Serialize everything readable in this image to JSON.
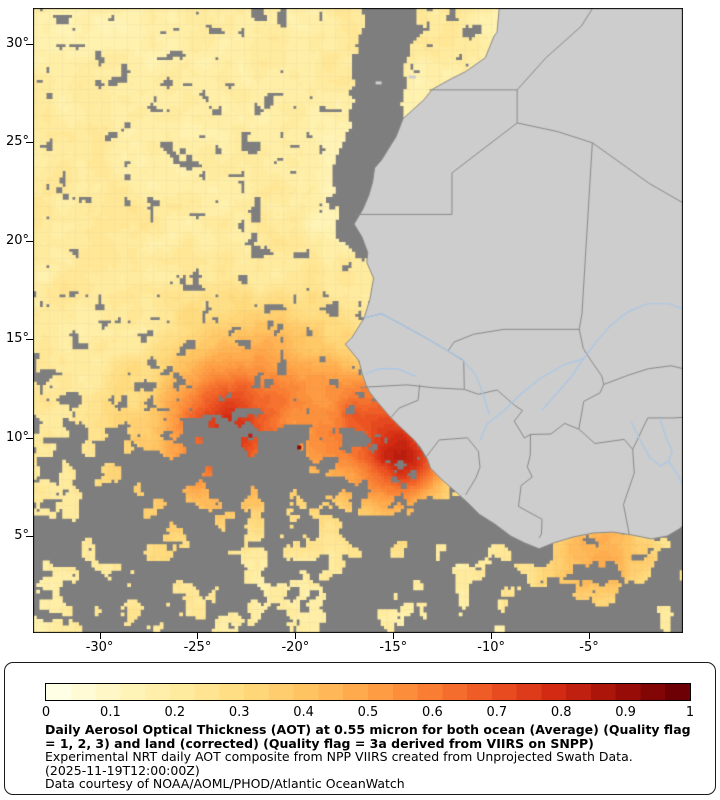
{
  "map": {
    "frame_color": "#000000",
    "colors": {
      "no_data": "#7e7e7e",
      "land": "#cdcdcd",
      "border": "#8a8a8a",
      "coast": "#8a8a8a",
      "river": "#a8c8e8"
    },
    "lat_ticks": [
      {
        "label": "30°",
        "value": 30
      },
      {
        "label": "25°",
        "value": 25
      },
      {
        "label": "20°",
        "value": 20
      },
      {
        "label": "15°",
        "value": 15
      },
      {
        "label": "10°",
        "value": 10
      },
      {
        "label": "5°",
        "value": 5
      }
    ],
    "lon_ticks": [
      {
        "label": "-30°",
        "value": -30
      },
      {
        "label": "-25°",
        "value": -25
      },
      {
        "label": "-20°",
        "value": -20
      },
      {
        "label": "-15°",
        "value": -15
      },
      {
        "label": "-10°",
        "value": -10
      },
      {
        "label": "-5°",
        "value": -5
      }
    ]
  },
  "colorbar": {
    "min": 0,
    "max": 1,
    "tick_labels": [
      "0",
      "0.1",
      "0.2",
      "0.3",
      "0.4",
      "0.5",
      "0.6",
      "0.7",
      "0.8",
      "0.9",
      "1"
    ],
    "stops": [
      {
        "v": 0.0,
        "color": "#ffffe5"
      },
      {
        "v": 0.1,
        "color": "#fff6be"
      },
      {
        "v": 0.2,
        "color": "#ffeb9e"
      },
      {
        "v": 0.3,
        "color": "#ffdb7e"
      },
      {
        "v": 0.4,
        "color": "#ffc361"
      },
      {
        "v": 0.5,
        "color": "#ffa448"
      },
      {
        "v": 0.6,
        "color": "#f97e33"
      },
      {
        "v": 0.7,
        "color": "#ec5322"
      },
      {
        "v": 0.8,
        "color": "#d32b13"
      },
      {
        "v": 0.9,
        "color": "#a20f08"
      },
      {
        "v": 1.0,
        "color": "#6c0004"
      }
    ]
  },
  "caption": {
    "title": "Daily Aerosol Optical Thickness (AOT) at 0.55 micron for both ocean (Average) (Quality flag = 1, 2, 3) and land (corrected) (Quality flag = 3a derived from VIIRS on SNPP)",
    "subtitle": "Experimental NRT daily AOT composite from NPP VIIRS created from Unprojected Swath Data.",
    "timestamp": "(2025-11-19T12:00:00Z)",
    "credit": "Data courtesy of NOAA/AOML/PHOD/Atlantic OceanWatch"
  }
}
